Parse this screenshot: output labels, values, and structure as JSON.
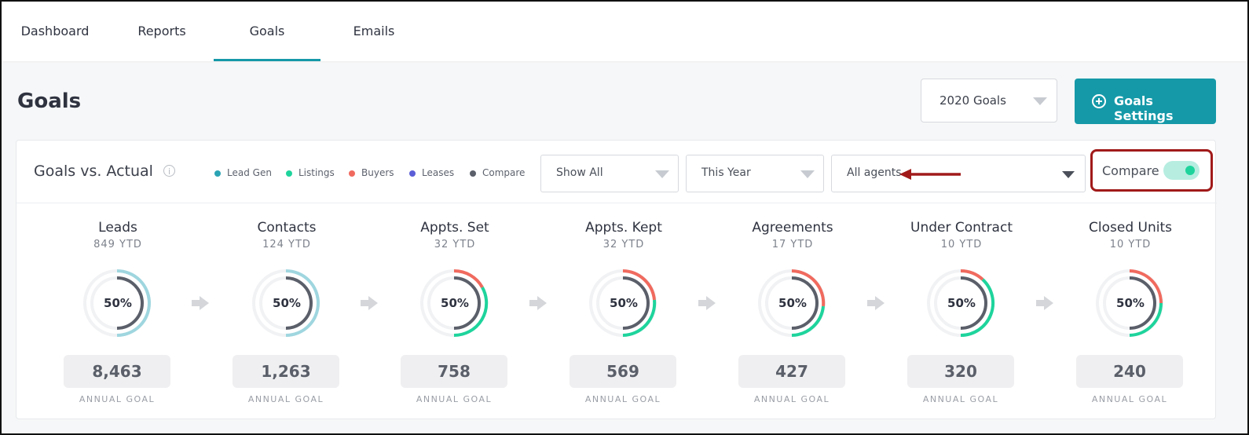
{
  "nav": {
    "tabs": [
      {
        "label": "Dashboard"
      },
      {
        "label": "Reports"
      },
      {
        "label": "Goals"
      },
      {
        "label": "Emails"
      }
    ]
  },
  "header": {
    "title": "Goals",
    "goal_year": "2020 Goals",
    "settings_button": "Goals Settings"
  },
  "panel": {
    "title": "Goals vs. Actual",
    "legend": [
      {
        "label": "Lead Gen",
        "color": "#2aa4b4"
      },
      {
        "label": "Listings",
        "color": "#1ed49c"
      },
      {
        "label": "Buyers",
        "color": "#f06a5e"
      },
      {
        "label": "Leases",
        "color": "#5b5ed6"
      },
      {
        "label": "Compare",
        "color": "#5a5f69"
      }
    ],
    "filters": {
      "show": "Show All",
      "period": "This Year",
      "agents": "All agents"
    },
    "compare": {
      "label": "Compare",
      "on": true
    }
  },
  "metrics": [
    {
      "name": "Leads",
      "ytd": "849 YTD",
      "pct": "50%",
      "goal": "8,463",
      "goal_label": "ANNUAL GOAL"
    },
    {
      "name": "Contacts",
      "ytd": "124 YTD",
      "pct": "50%",
      "goal": "1,263",
      "goal_label": "ANNUAL GOAL"
    },
    {
      "name": "Appts. Set",
      "ytd": "32 YTD",
      "pct": "50%",
      "goal": "758",
      "goal_label": "ANNUAL GOAL"
    },
    {
      "name": "Appts. Kept",
      "ytd": "32 YTD",
      "pct": "50%",
      "goal": "569",
      "goal_label": "ANNUAL GOAL"
    },
    {
      "name": "Agreements",
      "ytd": "17 YTD",
      "pct": "50%",
      "goal": "427",
      "goal_label": "ANNUAL GOAL"
    },
    {
      "name": "Under Contract",
      "ytd": "10 YTD",
      "pct": "50%",
      "goal": "320",
      "goal_label": "ANNUAL GOAL"
    },
    {
      "name": "Closed Units",
      "ytd": "10 YTD",
      "pct": "50%",
      "goal": "240",
      "goal_label": "ANNUAL GOAL"
    }
  ],
  "colors": {
    "accent": "#1599a8",
    "lead_gen_ring": "#9fd6df",
    "listings_ring": "#1ed49c",
    "buyers_ring": "#f06a5e",
    "compare_ring": "#5a5f69",
    "annotation": "#a11a1a"
  }
}
